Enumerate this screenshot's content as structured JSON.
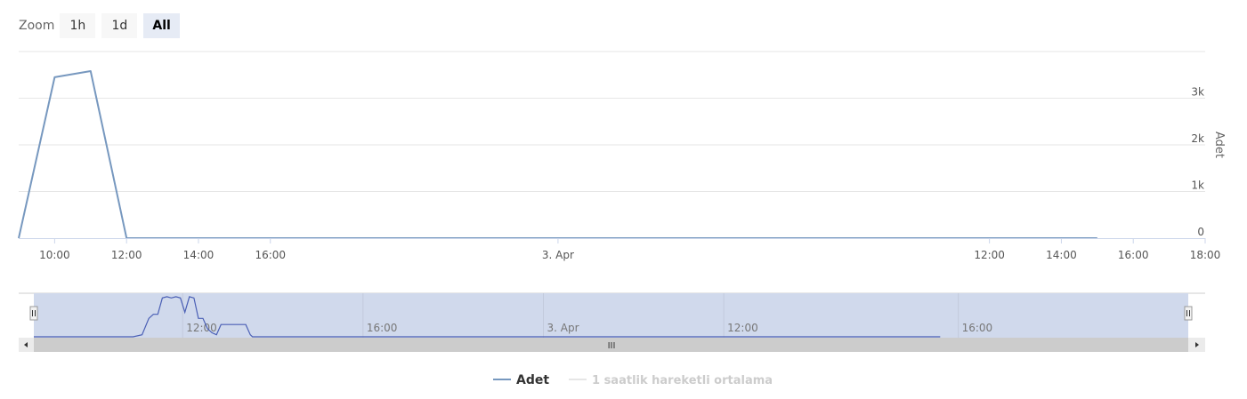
{
  "zoom": {
    "label": "Zoom",
    "buttons": [
      {
        "label": "1h",
        "active": false
      },
      {
        "label": "1d",
        "active": false
      },
      {
        "label": "All",
        "active": true
      }
    ]
  },
  "colors": {
    "series": "#7798bf",
    "navigator_series": "#4a5fb5",
    "navigator_mask": "#d0d9ec",
    "grid": "#e6e6e6",
    "scrollbar_track": "#cccccc",
    "legend_hidden": "#cccccc"
  },
  "chart_data": {
    "type": "line",
    "title": "",
    "ylabel": "Adet",
    "y_axis_side": "right",
    "ylim": [
      0,
      4000
    ],
    "y_ticks": [
      0,
      1000,
      2000,
      3000
    ],
    "y_tick_labels": [
      "0",
      "1k",
      "2k",
      "3k"
    ],
    "x_unit": "hours from 2 Apr 09:00",
    "xlim": [
      0,
      33
    ],
    "x_ticks": [
      {
        "value": 1,
        "label": "10:00"
      },
      {
        "value": 3,
        "label": "12:00"
      },
      {
        "value": 5,
        "label": "14:00"
      },
      {
        "value": 7,
        "label": "16:00"
      },
      {
        "value": 15,
        "label": "3. Apr"
      },
      {
        "value": 27,
        "label": "12:00"
      },
      {
        "value": 29,
        "label": "14:00"
      },
      {
        "value": 31,
        "label": "16:00"
      },
      {
        "value": 33,
        "label": "18:00"
      }
    ],
    "series": [
      {
        "name": "Adet",
        "visible": true,
        "x": [
          0,
          1,
          2,
          3,
          29,
          30
        ],
        "values": [
          0,
          3450,
          3580,
          0,
          0,
          0
        ]
      },
      {
        "name": "1 saatlik hareketli ortalama",
        "visible": false,
        "x": [],
        "values": []
      }
    ],
    "legend": {
      "placement": "bottom-center"
    },
    "grid": true
  },
  "navigator": {
    "x_ticks": [
      {
        "value": 3,
        "label": "12:00"
      },
      {
        "value": 7,
        "label": "16:00"
      },
      {
        "value": 11,
        "label": "3. Apr"
      },
      {
        "value": 15,
        "label": "12:00"
      },
      {
        "value": 20.2,
        "label": "16:00"
      }
    ],
    "xlim": [
      -0.3,
      25.3
    ],
    "series_x": [
      -0.3,
      1.9,
      2.1,
      2.25,
      2.35,
      2.45,
      2.55,
      2.65,
      2.75,
      2.85,
      2.95,
      3.05,
      3.15,
      3.25,
      3.35,
      3.45,
      3.55,
      3.65,
      3.75,
      3.85,
      4.0,
      4.2,
      4.4,
      4.5,
      4.55,
      4.8,
      19.8
    ],
    "series_values": [
      0,
      0,
      0.05,
      0.45,
      0.55,
      0.55,
      0.95,
      0.98,
      0.95,
      0.98,
      0.95,
      0.6,
      0.98,
      0.95,
      0.45,
      0.45,
      0.2,
      0.1,
      0.05,
      0.3,
      0.3,
      0.3,
      0.3,
      0.05,
      0,
      0,
      0
    ],
    "scrollbar_grip": "III"
  }
}
